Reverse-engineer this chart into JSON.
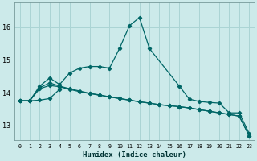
{
  "xlabel": "Humidex (Indice chaleur)",
  "bg_color": "#cceaea",
  "grid_color": "#aad4d4",
  "line_color": "#006666",
  "xlim": [
    -0.5,
    23.5
  ],
  "ylim": [
    12.55,
    16.75
  ],
  "yticks": [
    13,
    14,
    15,
    16
  ],
  "xticks": [
    0,
    1,
    2,
    3,
    4,
    5,
    6,
    7,
    8,
    9,
    10,
    11,
    12,
    13,
    14,
    15,
    16,
    17,
    18,
    19,
    20,
    21,
    22,
    23
  ],
  "line1_x": [
    0,
    1,
    2,
    3,
    4,
    5,
    6,
    7,
    8,
    9,
    10,
    11,
    12,
    13,
    16,
    17,
    18,
    19,
    20,
    21,
    22,
    23
  ],
  "line1_y": [
    13.75,
    13.75,
    14.2,
    14.45,
    14.25,
    14.6,
    14.75,
    14.8,
    14.8,
    14.75,
    15.35,
    16.05,
    16.3,
    15.35,
    14.2,
    13.8,
    13.73,
    13.7,
    13.68,
    13.38,
    13.38,
    12.75
  ],
  "line2_x": [
    0,
    1,
    2,
    3,
    4,
    5,
    6,
    7,
    8,
    9,
    10,
    11,
    12,
    13,
    14,
    15,
    16,
    17,
    18,
    19,
    20,
    21,
    22,
    23
  ],
  "line2_y": [
    13.75,
    13.75,
    14.15,
    14.3,
    14.2,
    14.12,
    14.05,
    13.98,
    13.93,
    13.87,
    13.82,
    13.77,
    13.72,
    13.68,
    13.63,
    13.6,
    13.57,
    13.53,
    13.48,
    13.43,
    13.38,
    13.33,
    13.28,
    12.68
  ],
  "line3_x": [
    0,
    1,
    2,
    3,
    4,
    5,
    6,
    7,
    8,
    9,
    10,
    11,
    12,
    13,
    14,
    15,
    16,
    17,
    18,
    19,
    20,
    21,
    22,
    23
  ],
  "line3_y": [
    13.75,
    13.75,
    14.12,
    14.22,
    14.18,
    14.1,
    14.03,
    13.97,
    13.92,
    13.87,
    13.82,
    13.77,
    13.72,
    13.68,
    13.63,
    13.6,
    13.57,
    13.53,
    13.48,
    13.43,
    13.38,
    13.33,
    13.28,
    12.68
  ],
  "line4_x": [
    0,
    1,
    2,
    3,
    4
  ],
  "line4_y": [
    13.75,
    13.75,
    13.77,
    13.82,
    14.1
  ]
}
